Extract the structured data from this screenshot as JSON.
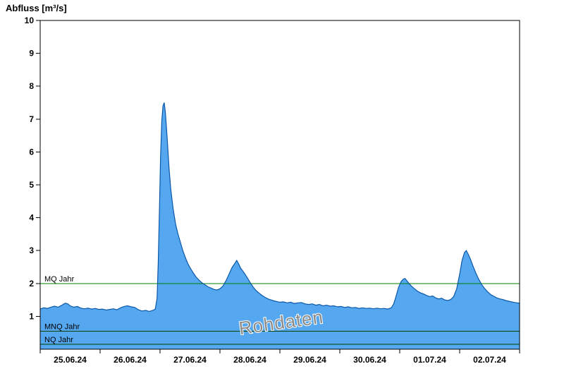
{
  "page": {
    "title": "Abfluss [m³/s]"
  },
  "chart_data": {
    "type": "area",
    "title": "Abfluss [m³/s]",
    "ylabel": "Abfluss [m³/s]",
    "watermark": "Rohdaten",
    "ylim": [
      0,
      10
    ],
    "yticks": [
      1,
      2,
      3,
      4,
      5,
      6,
      7,
      8,
      9,
      10
    ],
    "xlim": [
      0,
      8
    ],
    "x_unit": "days since 25.06.24 00:00",
    "x_tick_positions": [
      0,
      1,
      2,
      3,
      4,
      5,
      6,
      7,
      8
    ],
    "x_labels": [
      {
        "pos": 0.5,
        "label": "25.06.24"
      },
      {
        "pos": 1.5,
        "label": "26.06.24"
      },
      {
        "pos": 2.5,
        "label": "27.06.24"
      },
      {
        "pos": 3.5,
        "label": "28.06.24"
      },
      {
        "pos": 4.5,
        "label": "29.06.24"
      },
      {
        "pos": 5.5,
        "label": "30.06.24"
      },
      {
        "pos": 6.5,
        "label": "01.07.24"
      },
      {
        "pos": 7.5,
        "label": "02.07.24"
      }
    ],
    "reference_lines": [
      {
        "label": "MQ Jahr",
        "value": 2.0,
        "color": "#008000"
      },
      {
        "label": "MNQ Jahr",
        "value": 0.55,
        "color": "#004000"
      },
      {
        "label": "NQ Jahr",
        "value": 0.15,
        "color": "#004000"
      }
    ],
    "series": {
      "name": "Abfluss",
      "fill": "#55a8f0",
      "stroke": "#0b57a8",
      "points": [
        [
          0.0,
          1.22
        ],
        [
          0.06,
          1.26
        ],
        [
          0.12,
          1.24
        ],
        [
          0.18,
          1.28
        ],
        [
          0.24,
          1.31
        ],
        [
          0.3,
          1.28
        ],
        [
          0.36,
          1.34
        ],
        [
          0.42,
          1.4
        ],
        [
          0.46,
          1.38
        ],
        [
          0.5,
          1.32
        ],
        [
          0.56,
          1.28
        ],
        [
          0.62,
          1.3
        ],
        [
          0.68,
          1.25
        ],
        [
          0.74,
          1.23
        ],
        [
          0.8,
          1.25
        ],
        [
          0.86,
          1.22
        ],
        [
          0.92,
          1.24
        ],
        [
          0.98,
          1.21
        ],
        [
          1.04,
          1.22
        ],
        [
          1.1,
          1.19
        ],
        [
          1.16,
          1.21
        ],
        [
          1.22,
          1.23
        ],
        [
          1.28,
          1.2
        ],
        [
          1.34,
          1.26
        ],
        [
          1.4,
          1.3
        ],
        [
          1.46,
          1.32
        ],
        [
          1.52,
          1.29
        ],
        [
          1.58,
          1.27
        ],
        [
          1.64,
          1.2
        ],
        [
          1.7,
          1.16
        ],
        [
          1.76,
          1.18
        ],
        [
          1.82,
          1.15
        ],
        [
          1.88,
          1.18
        ],
        [
          1.92,
          1.22
        ],
        [
          1.95,
          1.55
        ],
        [
          1.97,
          2.6
        ],
        [
          1.99,
          4.3
        ],
        [
          2.01,
          5.9
        ],
        [
          2.03,
          6.95
        ],
        [
          2.05,
          7.4
        ],
        [
          2.07,
          7.5
        ],
        [
          2.09,
          7.2
        ],
        [
          2.12,
          6.4
        ],
        [
          2.15,
          5.5
        ],
        [
          2.18,
          4.85
        ],
        [
          2.22,
          4.25
        ],
        [
          2.26,
          3.8
        ],
        [
          2.3,
          3.5
        ],
        [
          2.34,
          3.25
        ],
        [
          2.38,
          3.0
        ],
        [
          2.42,
          2.8
        ],
        [
          2.46,
          2.62
        ],
        [
          2.5,
          2.48
        ],
        [
          2.55,
          2.33
        ],
        [
          2.6,
          2.2
        ],
        [
          2.65,
          2.1
        ],
        [
          2.7,
          2.02
        ],
        [
          2.75,
          1.96
        ],
        [
          2.8,
          1.9
        ],
        [
          2.85,
          1.86
        ],
        [
          2.9,
          1.82
        ],
        [
          2.95,
          1.8
        ],
        [
          3.0,
          1.84
        ],
        [
          3.05,
          1.92
        ],
        [
          3.1,
          2.08
        ],
        [
          3.15,
          2.28
        ],
        [
          3.2,
          2.48
        ],
        [
          3.25,
          2.62
        ],
        [
          3.28,
          2.7
        ],
        [
          3.31,
          2.6
        ],
        [
          3.34,
          2.48
        ],
        [
          3.38,
          2.38
        ],
        [
          3.42,
          2.28
        ],
        [
          3.46,
          2.16
        ],
        [
          3.5,
          2.04
        ],
        [
          3.55,
          1.9
        ],
        [
          3.6,
          1.79
        ],
        [
          3.65,
          1.71
        ],
        [
          3.7,
          1.64
        ],
        [
          3.75,
          1.58
        ],
        [
          3.8,
          1.53
        ],
        [
          3.85,
          1.5
        ],
        [
          3.9,
          1.47
        ],
        [
          3.95,
          1.45
        ],
        [
          4.0,
          1.43
        ],
        [
          4.06,
          1.44
        ],
        [
          4.12,
          1.41
        ],
        [
          4.18,
          1.43
        ],
        [
          4.24,
          1.39
        ],
        [
          4.3,
          1.41
        ],
        [
          4.36,
          1.42
        ],
        [
          4.42,
          1.38
        ],
        [
          4.48,
          1.36
        ],
        [
          4.54,
          1.38
        ],
        [
          4.6,
          1.34
        ],
        [
          4.66,
          1.36
        ],
        [
          4.72,
          1.32
        ],
        [
          4.78,
          1.34
        ],
        [
          4.84,
          1.31
        ],
        [
          4.9,
          1.32
        ],
        [
          4.96,
          1.29
        ],
        [
          5.02,
          1.3
        ],
        [
          5.08,
          1.27
        ],
        [
          5.14,
          1.29
        ],
        [
          5.2,
          1.26
        ],
        [
          5.26,
          1.27
        ],
        [
          5.32,
          1.24
        ],
        [
          5.38,
          1.26
        ],
        [
          5.44,
          1.24
        ],
        [
          5.5,
          1.25
        ],
        [
          5.56,
          1.23
        ],
        [
          5.62,
          1.25
        ],
        [
          5.68,
          1.23
        ],
        [
          5.74,
          1.24
        ],
        [
          5.8,
          1.22
        ],
        [
          5.86,
          1.26
        ],
        [
          5.9,
          1.38
        ],
        [
          5.94,
          1.62
        ],
        [
          5.98,
          1.88
        ],
        [
          6.02,
          2.05
        ],
        [
          6.06,
          2.13
        ],
        [
          6.09,
          2.15
        ],
        [
          6.12,
          2.08
        ],
        [
          6.16,
          1.99
        ],
        [
          6.2,
          1.91
        ],
        [
          6.25,
          1.83
        ],
        [
          6.3,
          1.76
        ],
        [
          6.35,
          1.71
        ],
        [
          6.4,
          1.68
        ],
        [
          6.45,
          1.63
        ],
        [
          6.5,
          1.6
        ],
        [
          6.55,
          1.62
        ],
        [
          6.6,
          1.56
        ],
        [
          6.65,
          1.53
        ],
        [
          6.7,
          1.55
        ],
        [
          6.75,
          1.5
        ],
        [
          6.8,
          1.48
        ],
        [
          6.85,
          1.51
        ],
        [
          6.9,
          1.6
        ],
        [
          6.95,
          1.84
        ],
        [
          7.0,
          2.28
        ],
        [
          7.04,
          2.7
        ],
        [
          7.08,
          2.94
        ],
        [
          7.11,
          3.0
        ],
        [
          7.14,
          2.9
        ],
        [
          7.18,
          2.74
        ],
        [
          7.22,
          2.54
        ],
        [
          7.27,
          2.32
        ],
        [
          7.32,
          2.12
        ],
        [
          7.37,
          1.96
        ],
        [
          7.42,
          1.84
        ],
        [
          7.47,
          1.74
        ],
        [
          7.52,
          1.66
        ],
        [
          7.57,
          1.61
        ],
        [
          7.62,
          1.56
        ],
        [
          7.67,
          1.53
        ],
        [
          7.72,
          1.51
        ],
        [
          7.77,
          1.48
        ],
        [
          7.82,
          1.46
        ],
        [
          7.87,
          1.44
        ],
        [
          7.92,
          1.42
        ],
        [
          8.0,
          1.4
        ]
      ]
    }
  }
}
